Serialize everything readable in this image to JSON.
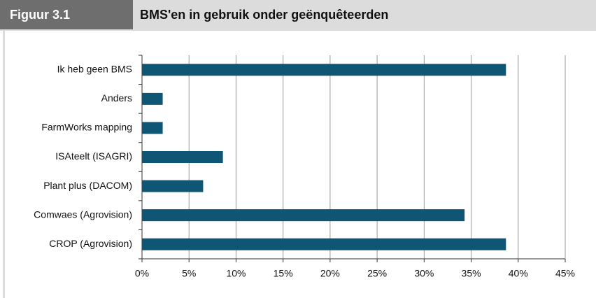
{
  "header": {
    "label": "Figuur 3.1"
  },
  "chart_data": {
    "type": "bar",
    "orientation": "horizontal",
    "title": "BMS'en in gebruik onder geënquêteerden",
    "categories": [
      "Ik heb geen BMS",
      "Anders",
      "FarmWorks mapping",
      "ISAteelt (ISAGRI)",
      "Plant plus (DACOM)",
      "Comwaes (Agrovision)",
      "CROP (Agrovision)"
    ],
    "values": [
      38.7,
      2.2,
      2.2,
      8.6,
      6.5,
      34.3,
      38.7
    ],
    "color": "#0f5574",
    "xlim": [
      0,
      45
    ],
    "xticks": [
      {
        "value": 0,
        "label": "0%"
      },
      {
        "value": 5,
        "label": "5%"
      },
      {
        "value": 10,
        "label": "10%"
      },
      {
        "value": 15,
        "label": "15%"
      },
      {
        "value": 20,
        "label": "20%"
      },
      {
        "value": 25,
        "label": "25%"
      },
      {
        "value": 30,
        "label": "30%"
      },
      {
        "value": 35,
        "label": "35%"
      },
      {
        "value": 40,
        "label": "40%"
      },
      {
        "value": 45,
        "label": "45%"
      }
    ],
    "grid": true
  }
}
